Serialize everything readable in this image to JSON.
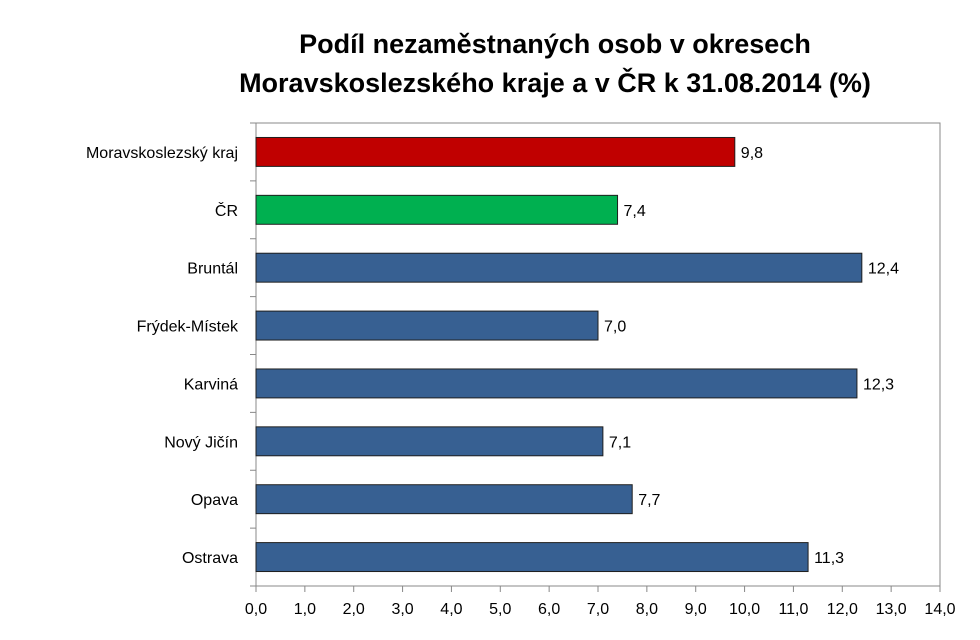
{
  "chart_data": {
    "type": "bar",
    "orientation": "horizontal",
    "title_lines": [
      "Podíl nezaměstnaných osob v okresech",
      "Moravskoslezského kraje a v ČR k 31.08.2014 (%)"
    ],
    "categories": [
      "Moravskoslezský kraj",
      "ČR",
      "Bruntál",
      "Frýdek-Místek",
      "Karviná",
      "Nový Jičín",
      "Opava",
      "Ostrava"
    ],
    "values": [
      9.8,
      7.4,
      12.4,
      7.0,
      12.3,
      7.1,
      7.7,
      11.3
    ],
    "value_labels": [
      "9,8",
      "7,4",
      "12,4",
      "7,0",
      "12,3",
      "7,1",
      "7,7",
      "11,3"
    ],
    "bar_colors": [
      "#c00000",
      "#00b050",
      "#376092",
      "#376092",
      "#376092",
      "#376092",
      "#376092",
      "#376092"
    ],
    "xlim": [
      0,
      14
    ],
    "x_ticks": [
      0,
      1,
      2,
      3,
      4,
      5,
      6,
      7,
      8,
      9,
      10,
      11,
      12,
      13,
      14
    ],
    "x_tick_labels": [
      "0,0",
      "1,0",
      "2,0",
      "3,0",
      "4,0",
      "5,0",
      "6,0",
      "7,0",
      "8,0",
      "9,0",
      "10,0",
      "11,0",
      "12,0",
      "13,0",
      "14,0"
    ],
    "grid": false,
    "legend": "none"
  }
}
